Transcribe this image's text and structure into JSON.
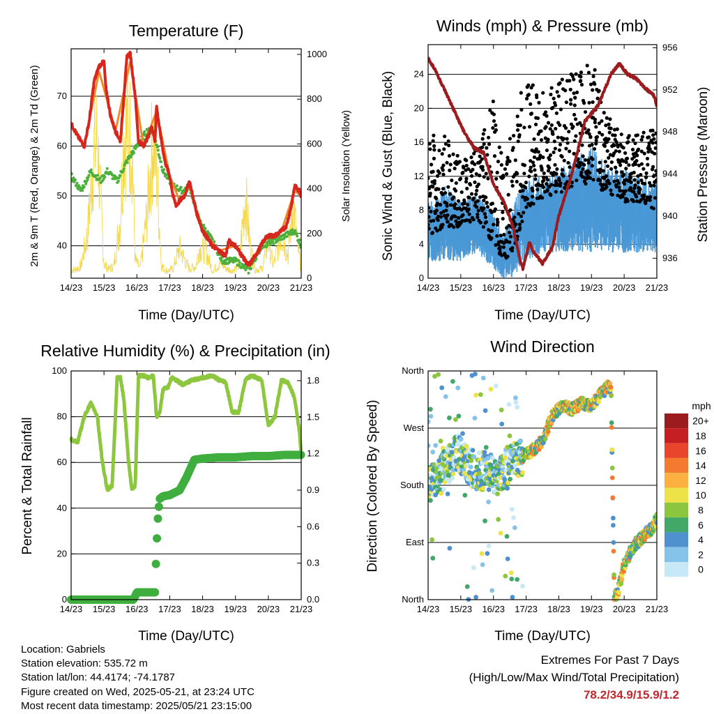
{
  "panels": {
    "temperature": {
      "title": "Temperature (F)",
      "ylabel_left": "2m & 9m T (Red, Orange) & 2m Td (Green)",
      "ylabel_right": "Solar Insolation (Yellow)",
      "xlabel": "Time (Day/UTC)"
    },
    "winds": {
      "title": "Winds (mph) & Pressure (mb)",
      "ylabel_left": "Sonic Wind & Gust (Blue, Black)",
      "ylabel_right": "Station Pressure (Maroon)",
      "xlabel": "Time (Day/UTC)"
    },
    "humidity": {
      "title": "Relative Humidity (%) & Precipitation (in)",
      "ylabel_left": "Percent & Total Rainfall",
      "xlabel": "Time (Day/UTC)"
    },
    "direction": {
      "title": "Wind Direction",
      "ylabel_left": "Direction (Colored By Speed)",
      "xlabel": "Time (Day/UTC)",
      "legend_title": "mph"
    }
  },
  "info": {
    "location": "Location: Gabriels",
    "elevation": "Station elevation: 535.72 m",
    "latlon": "Station lat/lon: 44.4174; -74.1787",
    "created": "Figure created on Wed, 2025-05-21, at 23:24 UTC",
    "recent": "Most recent data timestamp: 2025/05/21 23:15:00"
  },
  "extremes": {
    "line1": "Extremes For Past 7 Days",
    "line2": "(High/Low/Max Wind/Total Precipitation)",
    "values": "78.2/34.9/15.9/1.2"
  },
  "colors": {
    "temp_2m": "#d7261e",
    "temp_9m": "#f08a24",
    "dewpoint": "#4daf3c",
    "solar": "#f5d84a",
    "wind": "#4a98d6",
    "gust": "#000000",
    "pressure": "#9b1c1f",
    "rh": "#8dc63f",
    "precip": "#3fae3f"
  },
  "chart_data": [
    {
      "type": "line",
      "title": "Temperature (F)",
      "xlabel": "Time (Day/UTC)",
      "ylabel": "2m & 9m T (Red, Orange) & 2m Td (Green)",
      "ylabel_right": "Solar Insolation (Yellow)",
      "x_ticks": [
        "14/23",
        "15/23",
        "16/23",
        "17/23",
        "18/23",
        "19/23",
        "20/23",
        "21/23"
      ],
      "y_ticks": [
        40,
        50,
        60,
        70
      ],
      "y2_ticks": [
        0,
        200,
        400,
        600,
        800,
        1000
      ],
      "ylim": [
        33.5,
        79.5
      ],
      "y2lim": [
        0,
        1025
      ],
      "xlim": [
        0,
        7
      ],
      "series": [
        {
          "name": "2m T",
          "axis": "left",
          "x": [
            0,
            0.2,
            0.4,
            0.55,
            0.7,
            0.85,
            1.0,
            1.05,
            1.2,
            1.35,
            1.5,
            1.7,
            1.8,
            1.95,
            2.05,
            2.2,
            2.35,
            2.45,
            2.55,
            2.6,
            2.7,
            2.85,
            3.0,
            3.1,
            3.2,
            3.3,
            3.45,
            3.6,
            3.8,
            4.0,
            4.3,
            4.5,
            4.7,
            4.8,
            5.0,
            5.2,
            5.4,
            5.5,
            5.7,
            5.85,
            6.0,
            6.2,
            6.4,
            6.55,
            6.7,
            6.8,
            6.95,
            7.0
          ],
          "values": [
            64.5,
            62,
            60,
            65,
            73,
            76,
            77,
            72,
            66,
            63,
            61,
            78,
            78.5,
            70,
            61,
            60,
            62,
            64,
            61,
            68,
            63,
            57,
            54,
            50,
            48,
            49,
            50,
            53,
            47,
            43,
            40,
            39,
            38,
            41,
            40,
            38,
            36,
            37,
            39,
            41,
            42,
            42,
            43,
            44,
            48,
            52,
            51,
            50
          ]
        },
        {
          "name": "9m T",
          "axis": "left",
          "x": [
            0,
            0.4,
            0.85,
            1.35,
            1.8,
            2.2,
            2.6,
            3.0,
            3.3,
            3.6,
            4.0,
            4.5,
            5.0,
            5.4,
            5.85,
            6.4,
            6.8,
            7.0
          ],
          "values": [
            64,
            60,
            75,
            63,
            77,
            60,
            67,
            54,
            49,
            52,
            43,
            39,
            40,
            36,
            41,
            43,
            51,
            50
          ]
        },
        {
          "name": "2m Td",
          "axis": "left",
          "x": [
            0,
            0.3,
            0.6,
            0.9,
            1.1,
            1.4,
            1.7,
            2.0,
            2.3,
            2.5,
            2.8,
            3.1,
            3.4,
            3.6,
            3.9,
            4.3,
            4.6,
            5.0,
            5.4,
            5.8,
            6.2,
            6.5,
            6.8,
            7.0
          ],
          "values": [
            54,
            51,
            55,
            53,
            55,
            53,
            57,
            60,
            63,
            63,
            55,
            52,
            51,
            52,
            45,
            41,
            37,
            37,
            35,
            40,
            41,
            42,
            43,
            40
          ]
        },
        {
          "name": "Solar Insolation",
          "axis": "right",
          "x": [
            0,
            0.15,
            0.3,
            0.5,
            0.7,
            0.8,
            0.9,
            1.0,
            1.15,
            1.3,
            1.5,
            1.6,
            1.75,
            1.85,
            1.95,
            2.1,
            2.3,
            2.5,
            2.6,
            2.75,
            2.9,
            3.1,
            3.3,
            3.5,
            3.6,
            3.8,
            3.9,
            4.1,
            4.3,
            4.55,
            4.75,
            4.9,
            5.1,
            5.3,
            5.45,
            5.6,
            5.8,
            6.0,
            6.15,
            6.4,
            6.6,
            6.75,
            6.9,
            7.0
          ],
          "values": [
            50,
            60,
            80,
            300,
            860,
            930,
            500,
            90,
            60,
            80,
            400,
            950,
            980,
            900,
            120,
            60,
            400,
            950,
            700,
            80,
            50,
            60,
            200,
            100,
            60,
            80,
            200,
            180,
            50,
            100,
            60,
            50,
            80,
            550,
            200,
            60,
            60,
            250,
            80,
            300,
            150,
            500,
            200,
            60
          ]
        }
      ]
    },
    {
      "type": "scatter",
      "title": "Winds (mph) & Pressure (mb)",
      "xlabel": "Time (Day/UTC)",
      "ylabel": "Sonic Wind & Gust (Blue, Black)",
      "ylabel_right": "Station Pressure (Maroon)",
      "x_ticks": [
        "14/23",
        "15/23",
        "16/23",
        "17/23",
        "18/23",
        "19/23",
        "20/23",
        "21/23"
      ],
      "y_ticks": [
        0,
        4,
        8,
        12,
        16,
        20,
        24
      ],
      "y2_ticks": [
        936,
        940,
        944,
        948,
        952,
        956
      ],
      "ylim": [
        0,
        27.5
      ],
      "y2lim": [
        934.1,
        956.3
      ],
      "series": [
        {
          "name": "Sonic Wind",
          "kind": "band",
          "x": [
            0,
            0.5,
            1.0,
            1.5,
            2.0,
            2.3,
            2.6,
            3.0,
            3.5,
            4.0,
            4.5,
            5.0,
            5.5,
            6.0,
            6.5,
            7.0
          ],
          "low": [
            2,
            2,
            2,
            3,
            1,
            0,
            0,
            2,
            3,
            3,
            3,
            3,
            3,
            3,
            3,
            3
          ],
          "high": [
            9,
            11,
            9,
            10,
            8,
            5,
            9,
            12,
            12,
            13,
            14,
            16,
            13,
            13,
            12,
            11
          ]
        },
        {
          "name": "Gust",
          "kind": "points",
          "x": [
            0,
            0.5,
            1.0,
            1.5,
            2.0,
            2.3,
            2.6,
            3.0,
            3.5,
            4.0,
            4.5,
            5.0,
            5.5,
            6.0,
            6.5,
            7.0
          ],
          "low": [
            5,
            6,
            6,
            7,
            4,
            2,
            3,
            8,
            9,
            10,
            11,
            11,
            10,
            9,
            9,
            8
          ],
          "high": [
            18,
            17,
            14,
            16,
            21,
            13,
            19,
            24,
            22,
            23,
            25,
            26,
            19,
            17,
            17,
            18
          ]
        },
        {
          "name": "Station Pressure",
          "axis": "right",
          "x": [
            0,
            0.2,
            0.5,
            0.8,
            1.1,
            1.4,
            1.7,
            2.0,
            2.3,
            2.6,
            2.8,
            2.9,
            3.1,
            3.25,
            3.5,
            3.8,
            4.0,
            4.4,
            4.8,
            5.2,
            5.6,
            5.85,
            6.1,
            6.4,
            6.7,
            6.9,
            7.0
          ],
          "values": [
            955,
            954,
            952,
            950,
            948,
            946.5,
            946,
            943,
            941.5,
            939,
            936,
            935,
            937.5,
            936.5,
            935.5,
            937,
            940,
            944,
            949,
            950.5,
            953.5,
            954.5,
            953.5,
            953,
            952,
            951.5,
            950.5
          ]
        }
      ]
    },
    {
      "type": "line",
      "title": "Relative Humidity (%) & Precipitation (in)",
      "xlabel": "Time (Day/UTC)",
      "ylabel": "Percent & Total Rainfall",
      "x_ticks": [
        "14/23",
        "15/23",
        "16/23",
        "17/23",
        "18/23",
        "19/23",
        "20/23",
        "21/23"
      ],
      "y_ticks": [
        0,
        20,
        40,
        60,
        80,
        100
      ],
      "y2_ticks": [
        0.0,
        0.3,
        0.6,
        0.9,
        1.2,
        1.5,
        1.8
      ],
      "ylim": [
        0,
        100
      ],
      "y2lim": [
        0,
        1.88
      ],
      "series": [
        {
          "name": "Relative Humidity",
          "axis": "left",
          "x": [
            0,
            0.2,
            0.4,
            0.6,
            0.8,
            0.95,
            1.1,
            1.25,
            1.4,
            1.5,
            1.6,
            1.75,
            1.85,
            1.95,
            2.05,
            2.2,
            2.35,
            2.5,
            2.6,
            2.7,
            2.8,
            2.95,
            3.05,
            3.2,
            3.4,
            3.7,
            4.0,
            4.3,
            4.5,
            4.7,
            4.9,
            5.1,
            5.3,
            5.5,
            5.8,
            6.0,
            6.2,
            6.4,
            6.6,
            6.8,
            6.95,
            7.0
          ],
          "values": [
            70,
            69,
            80,
            86,
            80,
            60,
            48,
            50,
            97,
            97,
            88,
            60,
            48,
            50,
            98,
            98,
            97,
            98,
            80,
            82,
            92,
            93,
            97,
            96,
            94,
            96,
            97,
            98,
            96,
            95,
            82,
            82,
            96,
            98,
            96,
            76,
            80,
            96,
            95,
            88,
            73,
            63
          ]
        },
        {
          "name": "Total Precipitation",
          "axis": "right",
          "x": [
            0,
            0.5,
            1.0,
            1.5,
            1.9,
            2.0,
            2.3,
            2.55,
            2.6,
            2.65,
            2.7,
            2.8,
            3.0,
            3.3,
            3.5,
            3.75,
            4.0,
            4.5,
            5.0,
            5.5,
            6.0,
            6.5,
            7.0
          ],
          "values": [
            0,
            0,
            0,
            0,
            0,
            0.06,
            0.06,
            0.06,
            0.45,
            0.72,
            0.83,
            0.85,
            0.86,
            0.9,
            1.0,
            1.15,
            1.16,
            1.17,
            1.17,
            1.18,
            1.18,
            1.19,
            1.19
          ]
        }
      ]
    },
    {
      "type": "scatter",
      "title": "Wind Direction",
      "xlabel": "Time (Day/UTC)",
      "ylabel": "Direction (Colored By Speed)",
      "x_ticks": [
        "14/23",
        "15/23",
        "16/23",
        "17/23",
        "18/23",
        "19/23",
        "20/23",
        "21/23"
      ],
      "y_ticks": [
        "North",
        "East",
        "South",
        "West",
        "North"
      ],
      "ylim": [
        0,
        360
      ],
      "legend": {
        "title": "mph",
        "labels": [
          "0",
          "2",
          "4",
          "6",
          "8",
          "10",
          "12",
          "14",
          "16",
          "18",
          "20+"
        ],
        "colors": [
          "#c6e8f7",
          "#85c3ea",
          "#4f91ce",
          "#41a86a",
          "#8cc63f",
          "#ede248",
          "#fbb040",
          "#f37a2e",
          "#e9452c",
          "#c51f24",
          "#9c1b1e"
        ]
      },
      "series": [
        {
          "name": "Direction",
          "x": [
            0,
            0.3,
            0.6,
            0.9,
            1.2,
            1.5,
            1.8,
            2.1,
            2.4,
            2.6,
            2.9,
            3.2,
            3.5,
            3.8,
            4.1,
            4.4,
            4.7,
            5.0,
            5.3,
            5.5,
            5.6,
            5.7,
            5.8,
            6.0,
            6.3,
            6.6,
            6.9,
            7.0
          ],
          "values": [
            180,
            190,
            210,
            230,
            215,
            200,
            205,
            195,
            210,
            220,
            225,
            235,
            250,
            290,
            305,
            300,
            310,
            305,
            325,
            335,
            330,
            3,
            10,
            55,
            85,
            100,
            115,
            128
          ]
        }
      ]
    }
  ]
}
